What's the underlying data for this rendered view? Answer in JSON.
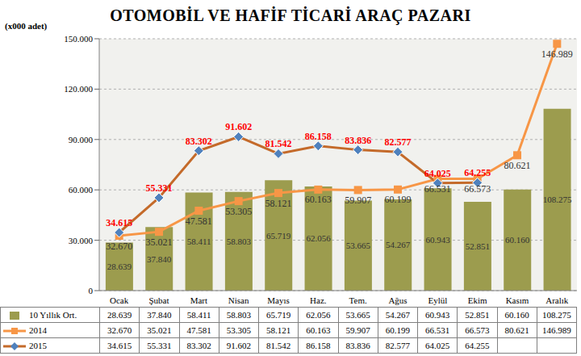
{
  "chart_data": {
    "type": "bar",
    "title": "OTOMOBİL VE HAFİF TİCARİ ARAÇ PAZARI",
    "subtitle": "(x000 adet)",
    "categories": [
      "Ocak",
      "Şubat",
      "Mart",
      "Nisan",
      "Mayıs",
      "Haz.",
      "Tem.",
      "Ağus",
      "Eylül",
      "Ekim",
      "Kasım",
      "Aralık"
    ],
    "series": [
      {
        "name": "10 Yıllık Ort.",
        "type": "bar",
        "color": "#9c9c4e",
        "values": [
          28639,
          37840,
          58411,
          58803,
          65719,
          62056,
          53665,
          54267,
          60943,
          52851,
          60160,
          108275
        ],
        "value_labels": [
          "28.639",
          "37.840",
          "58.411",
          "58.803",
          "65.719",
          "62.056",
          "53.665",
          "54.267",
          "60.943",
          "52.851",
          "60.160",
          "108.275"
        ]
      },
      {
        "name": "2014",
        "type": "line",
        "color": "#f79646",
        "marker": "square",
        "values": [
          32670,
          35021,
          47581,
          53305,
          58121,
          60163,
          59907,
          60199,
          66531,
          66573,
          80621,
          146989
        ],
        "value_labels": [
          "32.670",
          "35.021",
          "47.581",
          "53.305",
          "58.121",
          "60.163",
          "59.907",
          "60.199",
          "66.531",
          "66.573",
          "80.621",
          "146.989"
        ]
      },
      {
        "name": "2015",
        "type": "line",
        "color": "#c46a2a",
        "marker": "diamond",
        "values": [
          34615,
          55331,
          83302,
          91602,
          81542,
          86158,
          83836,
          82577,
          64025,
          64255,
          null,
          null
        ],
        "value_labels": [
          "34.615",
          "55.331",
          "83.302",
          "91.602",
          "81.542",
          "86.158",
          "83.836",
          "82.577",
          "64.025",
          "64.255",
          null,
          null
        ]
      }
    ],
    "ylim": [
      0,
      150000
    ],
    "yticks": [
      0,
      {
        "value": 30000,
        "label": "30.000"
      },
      {
        "value": 60000,
        "label": "60.000"
      },
      {
        "value": 90000,
        "label": "90.000"
      },
      {
        "value": 120000,
        "label": "120.000"
      },
      {
        "value": 150000,
        "label": "150.000"
      }
    ],
    "grid": true,
    "data_labels": true
  }
}
